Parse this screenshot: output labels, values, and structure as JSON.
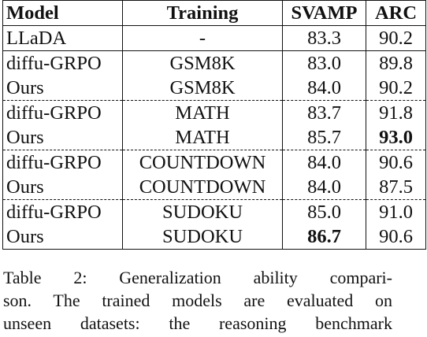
{
  "table": {
    "headers": {
      "model": "Model",
      "training": "Training",
      "svamp": "SVAMP",
      "arc": "ARC"
    },
    "rows": [
      {
        "model": "LLaDA",
        "training": "-",
        "svamp": "83.3",
        "arc": "90.2"
      },
      {
        "model": "diffu-GRPO",
        "training": "GSM8K",
        "svamp": "83.0",
        "arc": "89.8"
      },
      {
        "model": "Ours",
        "training": "GSM8K",
        "svamp": "84.0",
        "arc": "90.2"
      },
      {
        "model": "diffu-GRPO",
        "training": "MATH",
        "svamp": "83.7",
        "arc": "91.8"
      },
      {
        "model": "Ours",
        "training": "MATH",
        "svamp": "85.7",
        "arc": "93.0"
      },
      {
        "model": "diffu-GRPO",
        "training": "COUNTDOWN",
        "svamp": "84.0",
        "arc": "90.6"
      },
      {
        "model": "Ours",
        "training": "COUNTDOWN",
        "svamp": "84.0",
        "arc": "87.5"
      },
      {
        "model": "diffu-GRPO",
        "training": "SUDOKU",
        "svamp": "85.0",
        "arc": "91.0"
      },
      {
        "model": "Ours",
        "training": "SUDOKU",
        "svamp": "86.7",
        "arc": "90.6"
      }
    ],
    "bold_cells": [
      "row4.arc",
      "row8.svamp"
    ]
  },
  "caption": {
    "lines": [
      "Table 2:  Generalization ability compari-",
      "son.  The trained models are evaluated on",
      "unseen datasets:  the reasoning benchmark"
    ]
  }
}
